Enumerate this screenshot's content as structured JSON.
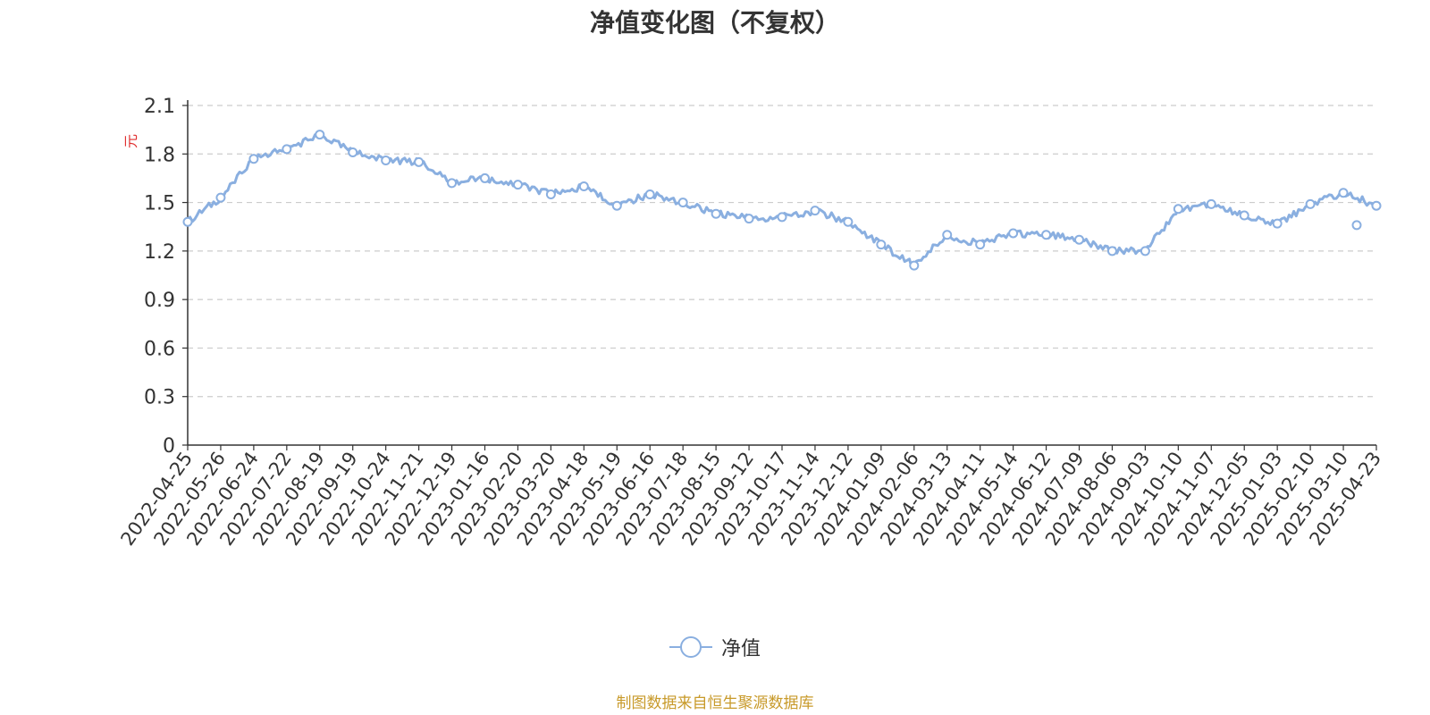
{
  "page_title": "净值变化图（不复权）",
  "legend": {
    "label": "净值"
  },
  "source_note": "制图数据来自恒生聚源数据库",
  "colors": {
    "series": "#8aafe0",
    "unit_label": "#e03030",
    "axis": "#333333",
    "grid": "#cccccc",
    "source": "#c89a2a"
  },
  "chart_data": {
    "type": "line",
    "title": "净值变化图（不复权）",
    "ylabel": "元",
    "xlabel": "",
    "ylim": [
      0,
      2.1
    ],
    "yticks": [
      "0",
      "0.3",
      "0.6",
      "0.9",
      "1.2",
      "1.5",
      "1.8",
      "2.1"
    ],
    "grid": true,
    "legend_position": "bottom",
    "x_categories": [
      "2022-04-25",
      "2022-05-26",
      "2022-06-24",
      "2022-07-22",
      "2022-08-19",
      "2022-09-19",
      "2022-10-24",
      "2022-11-21",
      "2022-12-19",
      "2023-01-16",
      "2023-02-20",
      "2023-03-20",
      "2023-04-18",
      "2023-05-19",
      "2023-06-16",
      "2023-07-18",
      "2023-08-15",
      "2023-09-12",
      "2023-10-17",
      "2023-11-14",
      "2023-12-12",
      "2024-01-09",
      "2024-02-06",
      "2024-03-13",
      "2024-04-11",
      "2024-05-14",
      "2024-06-12",
      "2024-07-09",
      "2024-08-06",
      "2024-09-03",
      "2024-10-10",
      "2024-11-07",
      "2024-12-05",
      "2025-01-03",
      "2025-02-10",
      "2025-03-10",
      "2025-04-23"
    ],
    "series": [
      {
        "name": "净值",
        "values": [
          1.38,
          1.53,
          1.77,
          1.83,
          1.92,
          1.81,
          1.76,
          1.75,
          1.62,
          1.65,
          1.61,
          1.55,
          1.6,
          1.48,
          1.55,
          1.5,
          1.43,
          1.4,
          1.41,
          1.45,
          1.38,
          1.24,
          1.11,
          1.3,
          1.24,
          1.31,
          1.3,
          1.27,
          1.2,
          1.2,
          1.46,
          1.49,
          1.42,
          1.37,
          1.49,
          1.56,
          1.48
        ]
      }
    ],
    "extra_points": [
      {
        "x": "2025-04-23 (prior)",
        "y": 1.36
      }
    ]
  }
}
